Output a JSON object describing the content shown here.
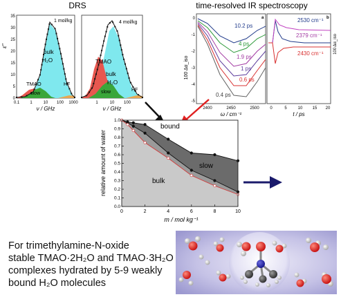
{
  "headings": {
    "drs": "DRS",
    "ir": "time-resolved IR spectroscopy"
  },
  "drs_panels": {
    "ylabel": "ε''",
    "xlabel": "ν / GHz",
    "ticks_x": [
      "0.1",
      "1",
      "10",
      "100",
      "1000"
    ],
    "ticks_y": [
      "0",
      "5",
      "10",
      "15",
      "20",
      "25",
      "30",
      "35"
    ],
    "left": {
      "concentration": "1 mol/kg",
      "labels": {
        "bulk": "bulk",
        "h2o": "H₂O",
        "tmao": "TMAO",
        "slow": "slow",
        "hf": "HF"
      }
    },
    "right": {
      "concentration": "4 mol/kg",
      "labels": {
        "tmao": "TMAO",
        "bulk": "bulk",
        "h2o": "H₂O",
        "slow": "slow",
        "hf": "HF"
      }
    }
  },
  "ir_panels": {
    "panel_a": {
      "tag": "a",
      "xlabel": "ω / cm⁻¹",
      "ylabel": "100 Δα_iso",
      "ticks_x": [
        "2400",
        "2450",
        "2500"
      ],
      "ticks_y": [
        "0",
        "-1",
        "-2",
        "-3",
        "-4",
        "-5"
      ],
      "delays": [
        "10.2 ps",
        "4 ps",
        "1.9 ps",
        "1 ps",
        "0.6 ps",
        "0.4 ps"
      ]
    },
    "panel_b": {
      "tag": "b",
      "xlabel": "t / ps",
      "ylabel": "100 Δα_iso",
      "ticks_x": [
        "0",
        "5",
        "10",
        "15",
        "20"
      ],
      "frequencies": [
        "2530 cm⁻¹",
        "2379 cm⁻¹",
        "2430 cm⁻¹"
      ]
    }
  },
  "colors": {
    "bulk_fill": "#7fe8ee",
    "tmao_fill": "#e8574f",
    "slow_fill": "#3aa63a",
    "hf_fill": "#e8a852",
    "bound_fill": "#6b6b6b",
    "bulk_area": "#c9c9c9",
    "fraction_line": "#d23a3a",
    "arrow_red": "#e02020",
    "arrow_navy": "#1a1a6b",
    "ir_10ps": "#203a8a",
    "ir_4ps": "#2e9a3a",
    "ir_1_9ps": "#a23aa2",
    "ir_1ps": "#5a3a9a",
    "ir_0_6ps": "#d83030",
    "ir_0_4ps": "#606060"
  },
  "chart_data": {
    "type": "area",
    "xlabel": "m / mol kg⁻¹",
    "ylabel": "relative amount of water",
    "xlim": [
      0,
      10
    ],
    "ylim": [
      0,
      1.0
    ],
    "x_ticks": [
      0,
      2,
      4,
      6,
      8,
      10
    ],
    "y_ticks": [
      0,
      0.1,
      0.2,
      0.3,
      0.4,
      0.5,
      0.6,
      0.7,
      0.8,
      0.9,
      1.0
    ],
    "region_labels": {
      "bound": "bound",
      "slow": "slow",
      "bulk": "bulk"
    },
    "series": [
      {
        "x": [
          0,
          0.5,
          1,
          2,
          4,
          6,
          8,
          10
        ],
        "values": [
          1.0,
          0.98,
          0.97,
          0.95,
          0.78,
          0.62,
          0.6,
          0.53
        ]
      },
      {
        "x": [
          0,
          0.5,
          1,
          2,
          4,
          6,
          8,
          10
        ],
        "values": [
          1.0,
          0.97,
          0.93,
          0.85,
          0.62,
          0.42,
          0.3,
          0.17
        ]
      },
      {
        "x": [
          0,
          0.5,
          1,
          2,
          4,
          6,
          8,
          10
        ],
        "values": [
          1.0,
          0.95,
          0.88,
          0.74,
          0.56,
          0.36,
          0.24,
          0.14
        ]
      }
    ]
  },
  "caption": {
    "line1": "For trimethylamine-N-oxide",
    "line2": "stable TMAO·2H₂O and TMAO·3H₂O",
    "line3": "complexes hydrated by 5-9 weakly",
    "line4": "bound H₂O molecules"
  }
}
